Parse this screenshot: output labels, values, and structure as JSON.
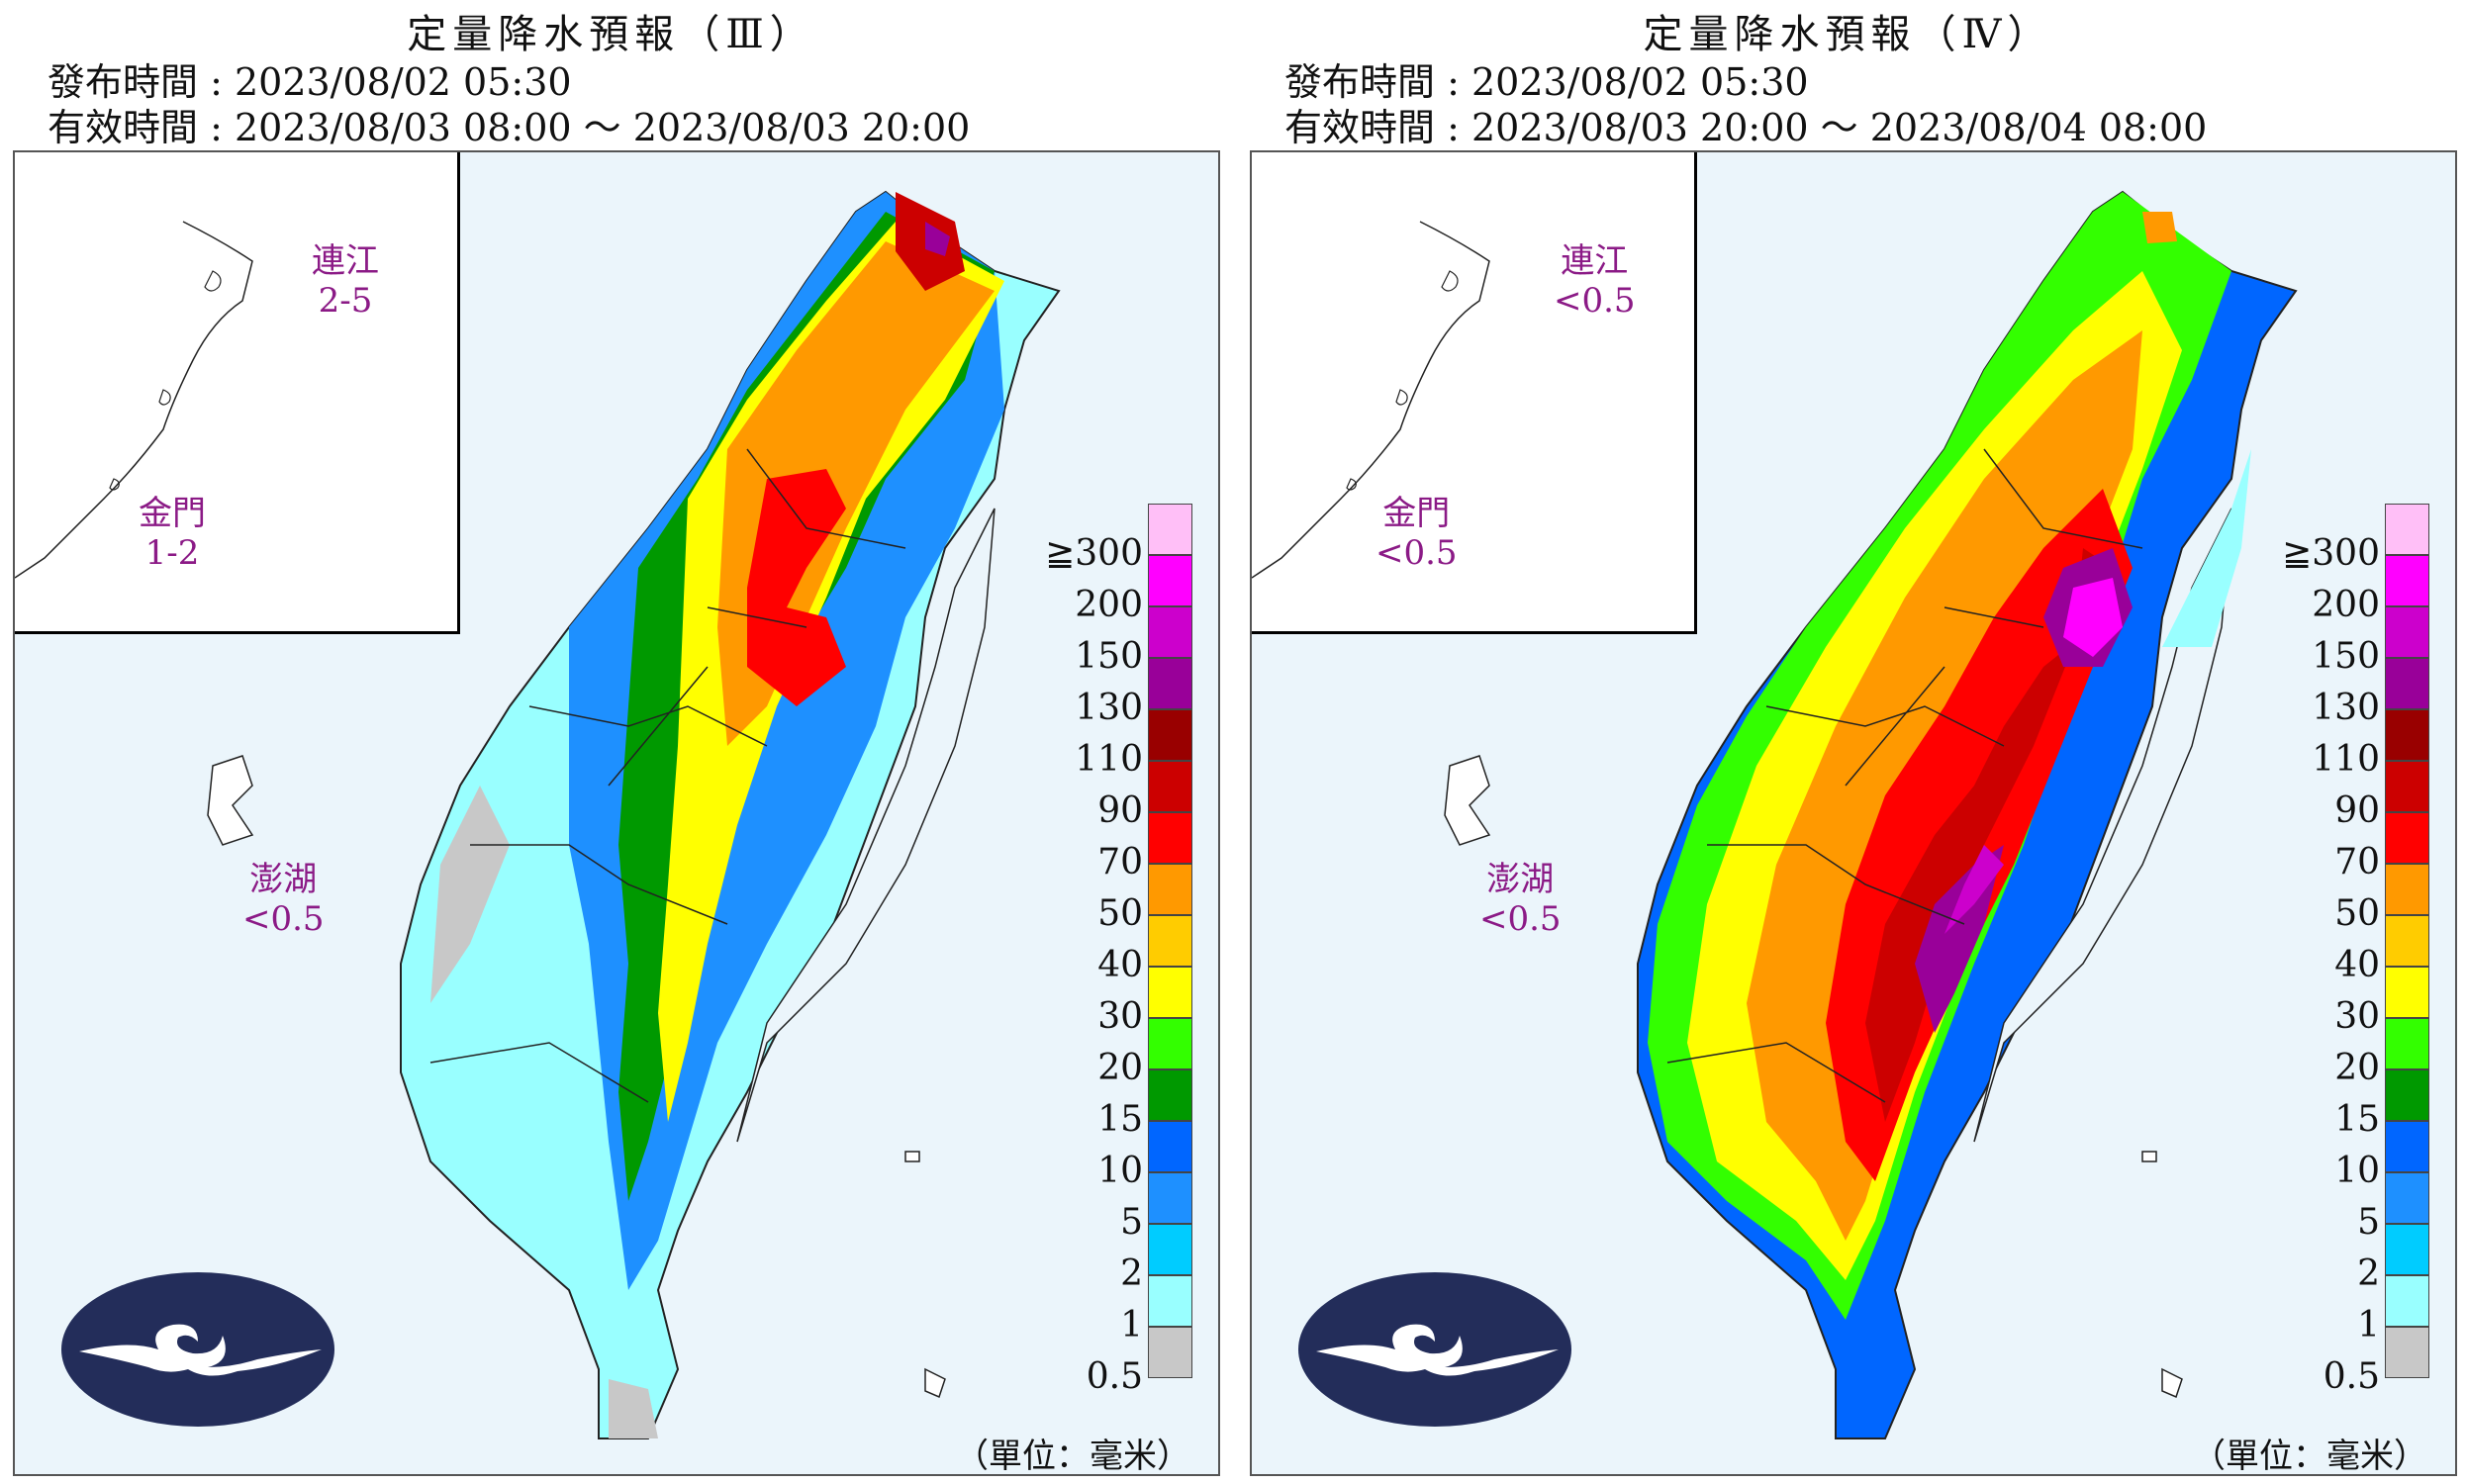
{
  "panels": [
    {
      "title": "定量降水預報（Ⅲ）",
      "issued": "發布時間 : 2023/08/02 05:30",
      "valid": "有效時間 : 2023/08/03 08:00 ～ 2023/08/03 20:00",
      "islands": [
        {
          "name": "連江",
          "value": "2-5"
        },
        {
          "name": "金門",
          "value": "1-2"
        },
        {
          "name": "澎湖",
          "value": "<0.5"
        }
      ],
      "unit": "（單位：毫米）"
    },
    {
      "title": "定量降水預報（Ⅳ）",
      "issued": "發布時間 : 2023/08/02 05:30",
      "valid": "有效時間 : 2023/08/03 20:00 ～ 2023/08/04 08:00",
      "islands": [
        {
          "name": "連江",
          "value": "<0.5"
        },
        {
          "name": "金門",
          "value": "<0.5"
        },
        {
          "name": "澎湖",
          "value": "<0.5"
        }
      ],
      "unit": "（單位：毫米）"
    }
  ],
  "legend": {
    "labels": [
      "≧300",
      "200",
      "150",
      "130",
      "110",
      "90",
      "70",
      "50",
      "40",
      "30",
      "20",
      "15",
      "10",
      "5",
      "2",
      "1",
      "0.5"
    ],
    "colors": [
      "#ffbff7",
      "#ff00ff",
      "#cc00cc",
      "#990099",
      "#990000",
      "#cc0000",
      "#ff0000",
      "#ff9900",
      "#ffcc00",
      "#ffff00",
      "#33ff00",
      "#009900",
      "#0066ff",
      "#1e90ff",
      "#00ccff",
      "#99ffff",
      "#c8c8c8"
    ]
  },
  "colors": {
    "sea": "#ebf5fb",
    "logo": "#232d5a",
    "label": "#8b1a86"
  }
}
